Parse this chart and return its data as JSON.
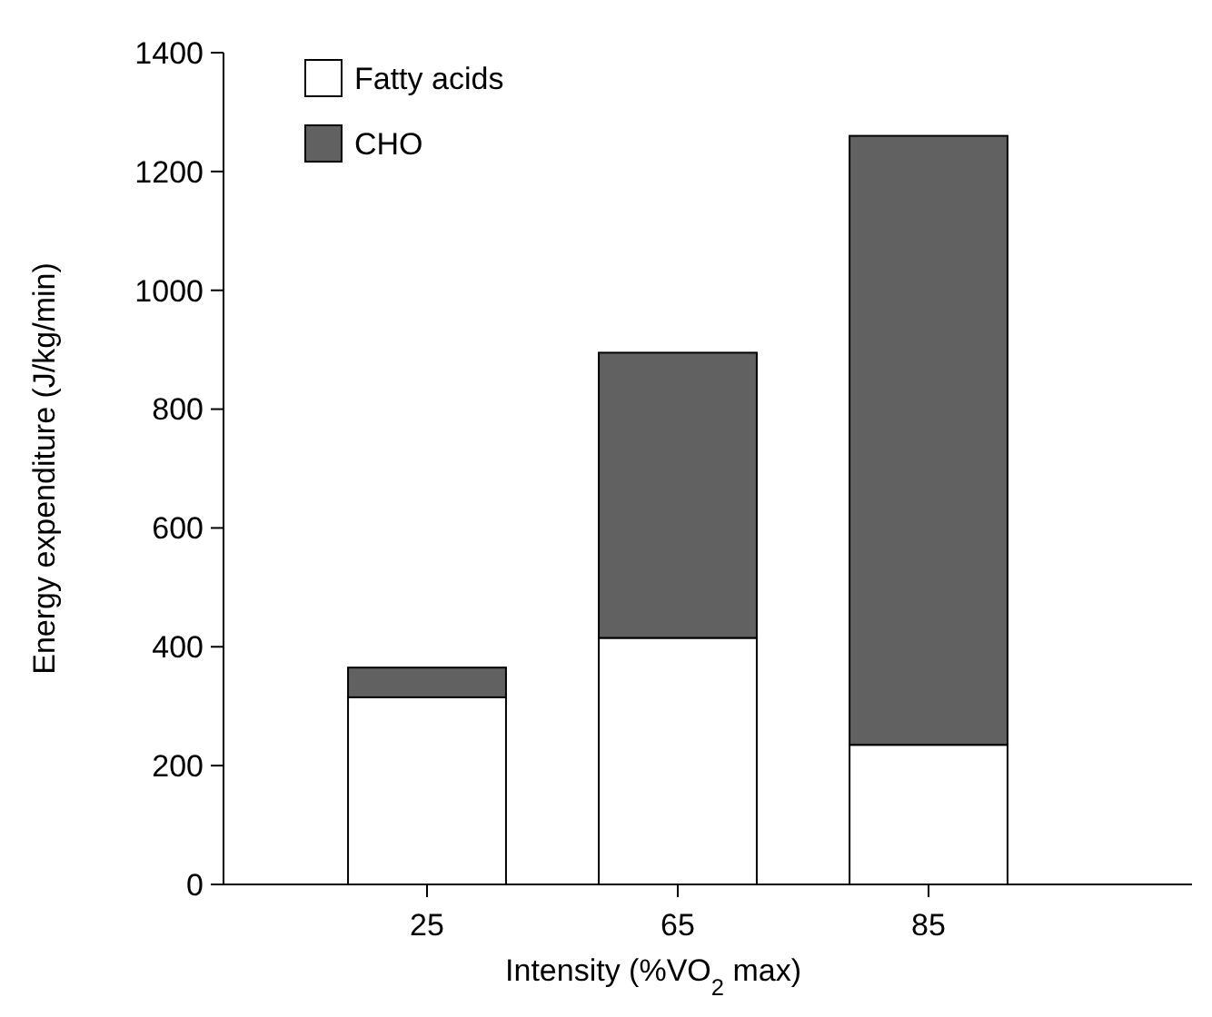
{
  "chart_data": {
    "type": "bar",
    "stacked": true,
    "xlabel": "Intensity (%VO$_{2}$ max)",
    "ylabel": "Energy expenditure (J/kg/min)",
    "categories": [
      "25",
      "65",
      "85"
    ],
    "series": [
      {
        "name": "Fatty acids",
        "color": "#ffffff",
        "values": [
          315,
          415,
          235
        ]
      },
      {
        "name": "CHO",
        "color": "#616161",
        "values": [
          50,
          480,
          1025
        ]
      }
    ],
    "ylim": [
      0,
      1400
    ],
    "yticks": [
      0,
      200,
      400,
      600,
      800,
      1000,
      1200,
      1400
    ],
    "legend": "top left",
    "grid": false
  }
}
